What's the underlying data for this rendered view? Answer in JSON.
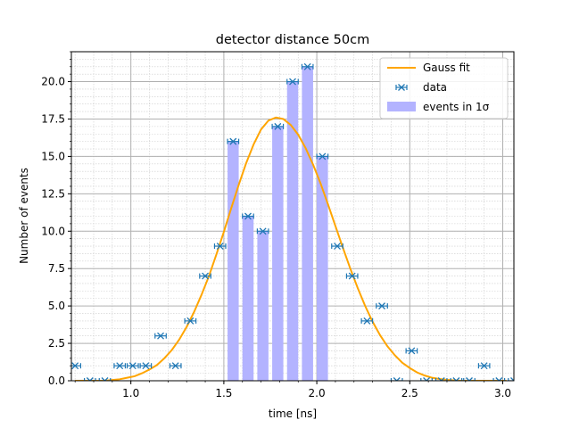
{
  "chart_data": {
    "type": "bar",
    "title": "detector distance 50cm",
    "xlabel": "time [ns]",
    "ylabel": "Number of events",
    "xlim": [
      0.68,
      3.06
    ],
    "ylim": [
      0,
      22.0
    ],
    "x_major_ticks": [
      1.0,
      1.5,
      2.0,
      2.5,
      3.0
    ],
    "x_tick_labels": [
      "1.0",
      "1.5",
      "2.0",
      "2.5",
      "3.0"
    ],
    "y_major_ticks": [
      0,
      2.5,
      5,
      7.5,
      10,
      12.5,
      15,
      17.5,
      20
    ],
    "y_tick_labels": [
      "0.0",
      "2.5",
      "5.0",
      "7.5",
      "10.0",
      "12.5",
      "15.0",
      "17.5",
      "20.0"
    ],
    "grid": "major and minor",
    "legend_position": "top-right",
    "bin_width": 0.06,
    "colors": {
      "fit": "#ffa500",
      "data": "#1f77b4",
      "bars": "#b3b3ff"
    },
    "series": [
      {
        "name": "Gauss fit",
        "kind": "line",
        "x": [
          0.7,
          0.74,
          0.78,
          0.82,
          0.86,
          0.9,
          0.94,
          0.98,
          1.02,
          1.06,
          1.1,
          1.14,
          1.18,
          1.22,
          1.26,
          1.3,
          1.34,
          1.38,
          1.42,
          1.46,
          1.5,
          1.54,
          1.58,
          1.62,
          1.66,
          1.7,
          1.74,
          1.78,
          1.82,
          1.86,
          1.9,
          1.94,
          1.98,
          2.02,
          2.06,
          2.1,
          2.14,
          2.18,
          2.22,
          2.26,
          2.3,
          2.34,
          2.38,
          2.42,
          2.46,
          2.5,
          2.54,
          2.58,
          2.62,
          2.66,
          2.7,
          2.74,
          2.78,
          2.82,
          2.86,
          2.9,
          2.94,
          2.98,
          3.02
        ],
        "y": [
          0.0,
          0.0,
          0.0,
          0.0,
          0.0,
          0.05,
          0.1,
          0.2,
          0.3,
          0.5,
          0.75,
          1.05,
          1.5,
          2.05,
          2.75,
          3.6,
          4.6,
          5.75,
          7.0,
          8.45,
          9.95,
          11.55,
          13.1,
          14.55,
          15.8,
          16.8,
          17.4,
          17.6,
          17.5,
          17.1,
          16.45,
          15.55,
          14.45,
          13.2,
          11.8,
          10.35,
          8.9,
          7.5,
          6.2,
          5.0,
          3.95,
          3.05,
          2.3,
          1.7,
          1.2,
          0.85,
          0.55,
          0.35,
          0.2,
          0.12,
          0.06,
          0.02,
          0.0,
          0.0,
          0.0,
          0.0,
          0.0,
          0.0,
          0.0
        ]
      },
      {
        "name": "data",
        "kind": "errorbar",
        "x": [
          0.7,
          0.78,
          0.86,
          0.94,
          1.01,
          1.08,
          1.16,
          1.24,
          1.32,
          1.4,
          1.48,
          1.55,
          1.63,
          1.71,
          1.79,
          1.87,
          1.95,
          2.03,
          2.11,
          2.19,
          2.27,
          2.35,
          2.43,
          2.51,
          2.59,
          2.67,
          2.75,
          2.82,
          2.9,
          2.98,
          3.06
        ],
        "y": [
          1,
          0,
          0,
          1,
          1,
          1,
          3,
          1,
          4,
          7,
          9,
          16,
          11,
          10,
          17,
          20,
          21,
          15,
          9,
          7,
          4,
          5,
          0,
          2,
          0,
          0,
          0,
          0,
          1,
          0,
          0
        ]
      },
      {
        "name": "events in 1σ",
        "kind": "bar",
        "x": [
          1.55,
          1.63,
          1.71,
          1.79,
          1.87,
          1.95,
          2.03
        ],
        "values": [
          16,
          11,
          10,
          17,
          20,
          21,
          15
        ]
      }
    ]
  }
}
